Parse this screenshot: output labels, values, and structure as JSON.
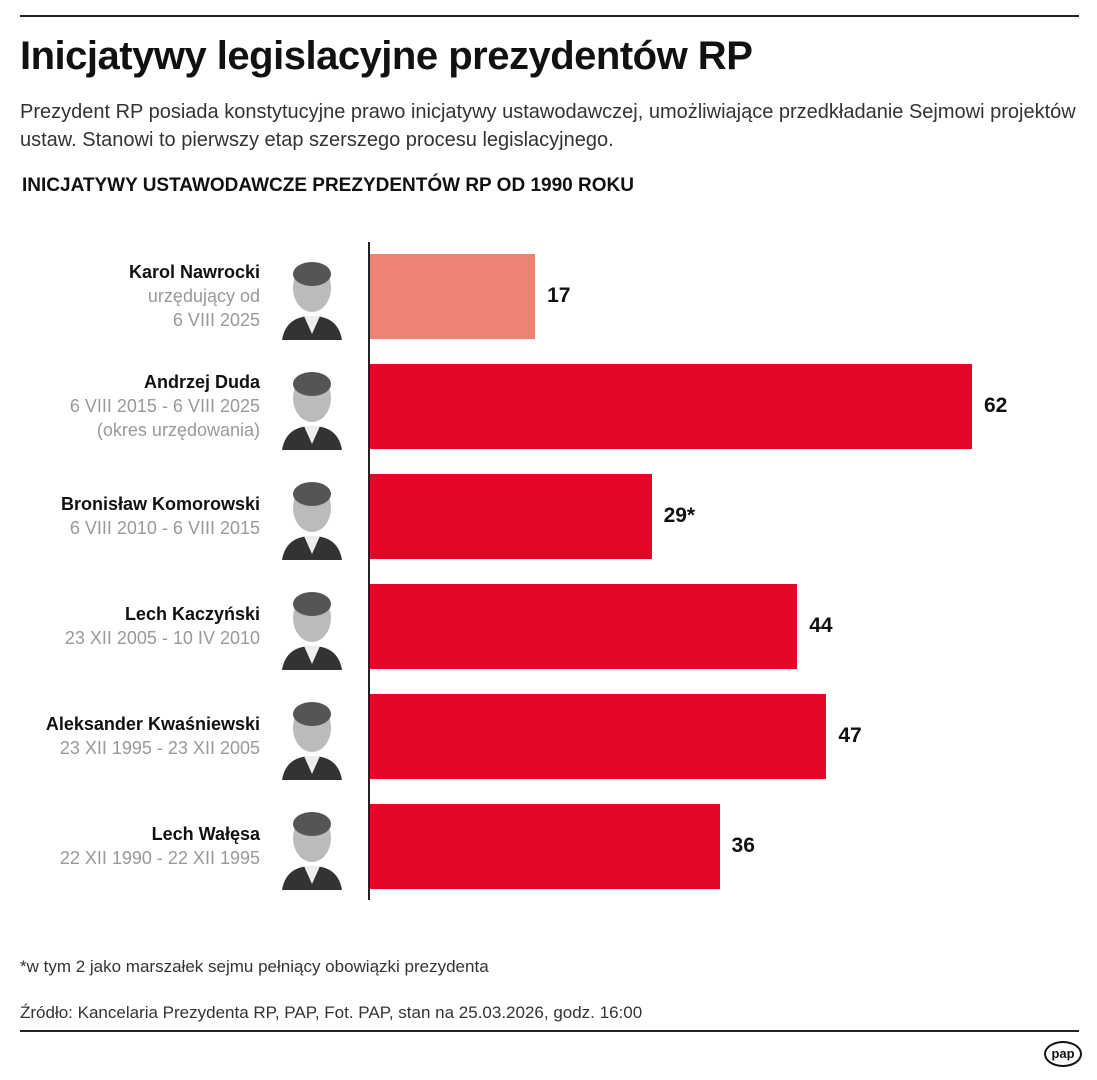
{
  "title": "Inicjatywy legislacyjne prezydentów RP",
  "subtitle": "Prezydent RP posiada konstytucyjne prawo inicjatywy ustawodawczej, umożliwiające przedkładanie Sejmowi projektów ustaw. Stanowi to pierwszy etap szerszego procesu legislacyjnego.",
  "footnote": "*w tym 2 jako marszałek sejmu pełniący obowiązki prezydenta",
  "source": "Źródło: Kancelaria Prezydenta RP, PAP, Fot. PAP, stan na 25.03.2026, godz. 16:00",
  "logo": "pap",
  "chart_data": {
    "type": "bar",
    "orientation": "horizontal",
    "title": "INICJATYWY USTAWODAWCZE PREZYDENTÓW RP OD 1990 ROKU",
    "categories": [
      {
        "name": "Karol Nawrocki",
        "term": [
          "urzędujący od",
          "6 VIII 2025"
        ]
      },
      {
        "name": "Andrzej Duda",
        "term": [
          "6 VIII 2015 - 6 VIII 2025",
          "(okres urzędowania)"
        ]
      },
      {
        "name": "Bronisław Komorowski",
        "term": [
          "6 VIII 2010 - 6 VIII 2015"
        ]
      },
      {
        "name": "Lech Kaczyński",
        "term": [
          "23 XII 2005 - 10 IV 2010"
        ]
      },
      {
        "name": "Aleksander Kwaśniewski",
        "term": [
          "23 XII 1995 - 23 XII 2005"
        ]
      },
      {
        "name": "Lech Wałęsa",
        "term": [
          "22 XII 1990 - 22 XII 1995"
        ]
      }
    ],
    "values": [
      17,
      62,
      29,
      44,
      47,
      36
    ],
    "data_labels": [
      "17",
      "62",
      "29*",
      "44",
      "47",
      "36"
    ],
    "colors": [
      "#ef8272",
      "#e30627",
      "#e30627",
      "#e30627",
      "#e30627",
      "#e30627"
    ],
    "xlim": [
      0,
      62
    ],
    "grid": false
  }
}
